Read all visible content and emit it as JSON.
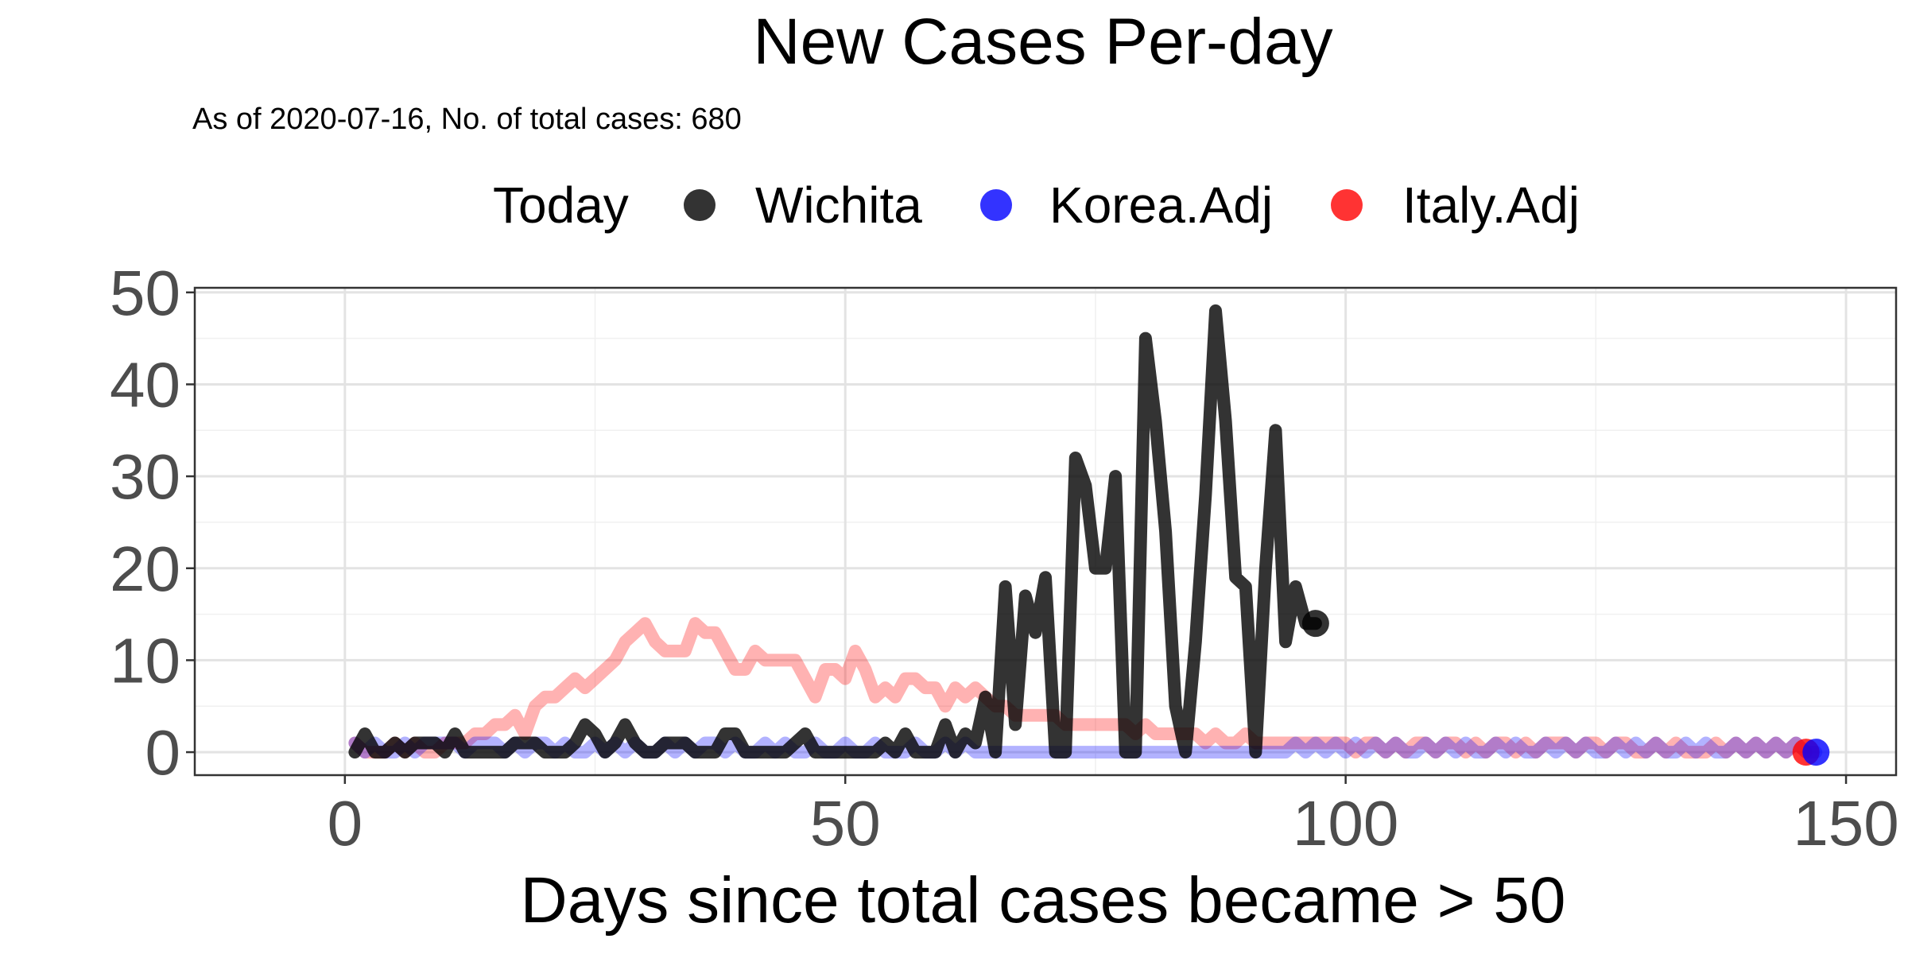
{
  "chart_data": {
    "type": "line",
    "title": "New Cases Per-day",
    "subtitle": "As of 2020-07-16, No. of total cases: 680",
    "xlabel": "Days since total cases became > 50",
    "ylabel": "",
    "xlim": [
      -15,
      155
    ],
    "ylim": [
      -2.5,
      50.5
    ],
    "x_ticks": [
      0,
      50,
      100,
      150
    ],
    "y_ticks": [
      0,
      10,
      20,
      30,
      40,
      50
    ],
    "grid": true,
    "legend": {
      "title": "Today",
      "placement": "top",
      "items": [
        {
          "label": "Wichita",
          "color": "#000000"
        },
        {
          "label": "Korea.Adj",
          "color": "#0000ff"
        },
        {
          "label": "Italy.Adj",
          "color": "#ff0000"
        }
      ]
    },
    "series": [
      {
        "name": "Italy.Adj",
        "color": "#ff0000",
        "opacity": 0.3,
        "x": [
          1,
          2,
          3,
          4,
          5,
          6,
          7,
          8,
          9,
          10,
          11,
          12,
          13,
          14,
          15,
          16,
          17,
          18,
          19,
          20,
          21,
          22,
          23,
          24,
          25,
          26,
          27,
          28,
          29,
          30,
          31,
          32,
          33,
          34,
          35,
          36,
          37,
          38,
          39,
          40,
          41,
          42,
          43,
          44,
          45,
          46,
          47,
          48,
          49,
          50,
          51,
          52,
          53,
          54,
          55,
          56,
          57,
          58,
          59,
          60,
          61,
          62,
          63,
          64,
          65,
          66,
          67,
          68,
          69,
          70,
          71,
          72,
          73,
          74,
          75,
          76,
          77,
          78,
          79,
          80,
          81,
          82,
          83,
          84,
          85,
          86,
          87,
          88,
          89,
          90,
          91,
          92,
          93,
          94,
          95,
          96,
          97,
          98,
          99,
          100,
          101,
          102,
          103,
          104,
          105,
          106,
          107,
          108,
          109,
          110,
          111,
          112,
          113,
          114,
          115,
          116,
          117,
          118,
          119,
          120,
          121,
          122,
          123,
          124,
          125,
          126,
          127,
          128,
          129,
          130,
          131,
          132,
          133,
          134,
          135,
          136,
          137,
          138,
          139,
          140,
          141,
          142,
          143,
          144,
          145,
          146
        ],
        "y": [
          1,
          0,
          0,
          0,
          1,
          0,
          1,
          0,
          0,
          1,
          1,
          1,
          2,
          2,
          3,
          3,
          4,
          2,
          5,
          6,
          6,
          7,
          8,
          7,
          8,
          9,
          10,
          12,
          13,
          14,
          12,
          11,
          11,
          11,
          14,
          13,
          13,
          11,
          9,
          9,
          11,
          10,
          10,
          10,
          10,
          8,
          6,
          9,
          9,
          8,
          11,
          9,
          6,
          7,
          6,
          8,
          8,
          7,
          7,
          5,
          7,
          6,
          7,
          6,
          5,
          5,
          4,
          4,
          4,
          4,
          4,
          3,
          3,
          3,
          3,
          3,
          3,
          3,
          2,
          3,
          2,
          2,
          2,
          2,
          2,
          1,
          2,
          1,
          1,
          2,
          1,
          1,
          1,
          1,
          1,
          1,
          1,
          1,
          1,
          1,
          0,
          1,
          1,
          0,
          1,
          0,
          1,
          1,
          0,
          1,
          1,
          0,
          1,
          0,
          1,
          1,
          0,
          1,
          0,
          1,
          1,
          1,
          0,
          1,
          1,
          0,
          1,
          1,
          0,
          0,
          1,
          0,
          1,
          0,
          0,
          0,
          1,
          0,
          1,
          0,
          1,
          0,
          1,
          0,
          1,
          0
        ],
        "today": {
          "x": 146,
          "y": 0
        }
      },
      {
        "name": "Korea.Adj",
        "color": "#0000ff",
        "opacity": 0.3,
        "x": [
          1,
          2,
          3,
          4,
          5,
          6,
          7,
          8,
          9,
          10,
          11,
          12,
          13,
          14,
          15,
          16,
          17,
          18,
          19,
          20,
          21,
          22,
          23,
          24,
          25,
          26,
          27,
          28,
          29,
          30,
          31,
          32,
          33,
          34,
          35,
          36,
          37,
          38,
          39,
          40,
          41,
          42,
          43,
          44,
          45,
          46,
          47,
          48,
          49,
          50,
          51,
          52,
          53,
          54,
          55,
          56,
          57,
          58,
          59,
          60,
          61,
          62,
          63,
          64,
          65,
          66,
          67,
          68,
          69,
          70,
          71,
          72,
          73,
          74,
          75,
          76,
          77,
          78,
          79,
          80,
          81,
          82,
          83,
          84,
          85,
          86,
          87,
          88,
          89,
          90,
          91,
          92,
          93,
          94,
          95,
          96,
          97,
          98,
          99,
          100,
          101,
          102,
          103,
          104,
          105,
          106,
          107,
          108,
          109,
          110,
          111,
          112,
          113,
          114,
          115,
          116,
          117,
          118,
          119,
          120,
          121,
          122,
          123,
          124,
          125,
          126,
          127,
          128,
          129,
          130,
          131,
          132,
          133,
          134,
          135,
          136,
          137,
          138,
          139,
          140,
          141,
          142,
          143,
          144,
          145,
          146,
          147
        ],
        "y": [
          1,
          0,
          1,
          0,
          0,
          1,
          0,
          1,
          1,
          1,
          1,
          0,
          1,
          1,
          1,
          0,
          1,
          0,
          1,
          1,
          0,
          1,
          0,
          0,
          1,
          0,
          1,
          0,
          1,
          0,
          0,
          1,
          0,
          1,
          0,
          1,
          1,
          0,
          1,
          0,
          0,
          1,
          0,
          1,
          0,
          0,
          1,
          0,
          0,
          1,
          0,
          0,
          1,
          0,
          0,
          0,
          1,
          0,
          0,
          1,
          0,
          1,
          0,
          0,
          0,
          0,
          0,
          0,
          0,
          0,
          0,
          0,
          0,
          0,
          0,
          0,
          0,
          0,
          0,
          0,
          0,
          0,
          0,
          0,
          0,
          0,
          0,
          0,
          0,
          0,
          0,
          0,
          0,
          0,
          1,
          0,
          1,
          0,
          1,
          0,
          1,
          0,
          1,
          0,
          1,
          0,
          0,
          1,
          0,
          1,
          0,
          1,
          0,
          0,
          1,
          0,
          1,
          0,
          0,
          1,
          0,
          1,
          0,
          1,
          0,
          0,
          1,
          0,
          1,
          0,
          1,
          0,
          0,
          1,
          0,
          1,
          0,
          0,
          1,
          0,
          1,
          0,
          1,
          0,
          1,
          0,
          0
        ],
        "today": {
          "x": 147,
          "y": 0
        }
      },
      {
        "name": "Wichita",
        "color": "#000000",
        "opacity": 0.8,
        "x": [
          1,
          2,
          3,
          4,
          5,
          6,
          7,
          8,
          9,
          10,
          11,
          12,
          13,
          14,
          15,
          16,
          17,
          18,
          19,
          20,
          21,
          22,
          23,
          24,
          25,
          26,
          27,
          28,
          29,
          30,
          31,
          32,
          33,
          34,
          35,
          36,
          37,
          38,
          39,
          40,
          41,
          42,
          43,
          44,
          45,
          46,
          47,
          48,
          49,
          50,
          51,
          52,
          53,
          54,
          55,
          56,
          57,
          58,
          59,
          60,
          61,
          62,
          63,
          64,
          65,
          66,
          67,
          68,
          69,
          70,
          71,
          72,
          73,
          74,
          75,
          76,
          77,
          78,
          79,
          80,
          81,
          82,
          83,
          84,
          85,
          86,
          87,
          88,
          89,
          90,
          91,
          92,
          93,
          94,
          95,
          96,
          97
        ],
        "y": [
          0,
          2,
          0,
          0,
          1,
          0,
          1,
          1,
          1,
          0,
          2,
          0,
          0,
          0,
          0,
          0,
          1,
          1,
          1,
          0,
          0,
          0,
          1,
          3,
          2,
          0,
          1,
          3,
          1,
          0,
          0,
          1,
          1,
          1,
          0,
          0,
          0,
          2,
          2,
          0,
          0,
          0,
          0,
          0,
          1,
          2,
          0,
          0,
          0,
          0,
          0,
          0,
          0,
          1,
          0,
          2,
          0,
          0,
          0,
          3,
          0,
          2,
          1,
          6,
          0,
          18,
          3,
          17,
          13,
          19,
          0,
          0,
          32,
          29,
          20,
          20,
          30,
          0,
          0,
          45,
          36,
          24,
          5,
          0,
          12,
          28,
          48,
          36,
          19,
          18,
          0,
          20,
          35,
          12,
          18,
          14,
          14
        ],
        "today": {
          "x": 97,
          "y": 14
        }
      }
    ]
  }
}
